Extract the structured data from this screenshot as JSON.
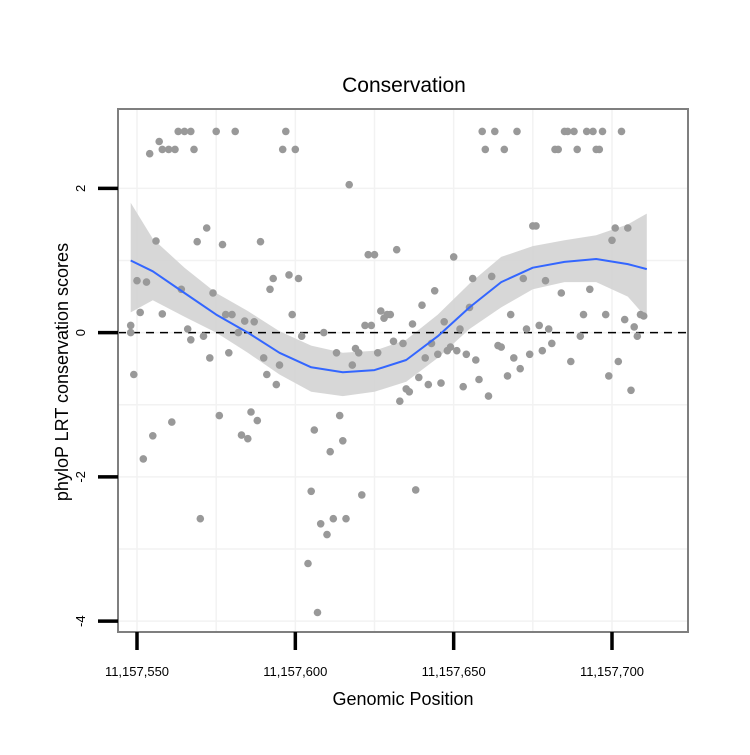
{
  "chart_data": {
    "type": "scatter",
    "title": "Conservation",
    "xlabel": "Genomic Position",
    "ylabel": "phyloP LRT conservation scores",
    "xlim": [
      11157544,
      11157724
    ],
    "ylim": [
      -4.15,
      3.1
    ],
    "x_ticks": [
      {
        "value": 11157550,
        "label": "11,157,550"
      },
      {
        "value": 11157600,
        "label": "11,157,600"
      },
      {
        "value": 11157650,
        "label": "11,157,650"
      },
      {
        "value": 11157700,
        "label": "11,157,700"
      }
    ],
    "y_ticks": [
      {
        "value": -4,
        "label": "-4"
      },
      {
        "value": -2,
        "label": "-2"
      },
      {
        "value": 0,
        "label": "0"
      },
      {
        "value": 2,
        "label": "2"
      }
    ],
    "reference_line": {
      "y": 0,
      "style": "dashed"
    },
    "colors": {
      "points": "#999999",
      "smooth": "#3366ff",
      "ribbon": "#d3d3d3",
      "grid": "#f2f2f2",
      "panel_border": "#7f7f7f"
    },
    "points": [
      {
        "x": 11157548,
        "y": 0.0
      },
      {
        "x": 11157548,
        "y": 0.1
      },
      {
        "x": 11157549,
        "y": -0.58
      },
      {
        "x": 11157550,
        "y": 0.72
      },
      {
        "x": 11157551,
        "y": 0.28
      },
      {
        "x": 11157552,
        "y": -1.75
      },
      {
        "x": 11157553,
        "y": 0.7
      },
      {
        "x": 11157554,
        "y": 2.48
      },
      {
        "x": 11157555,
        "y": -1.43
      },
      {
        "x": 11157556,
        "y": 1.27
      },
      {
        "x": 11157557,
        "y": 2.65
      },
      {
        "x": 11157558,
        "y": 0.26
      },
      {
        "x": 11157558,
        "y": 2.54
      },
      {
        "x": 11157560,
        "y": 2.54
      },
      {
        "x": 11157561,
        "y": -1.24
      },
      {
        "x": 11157562,
        "y": 2.54
      },
      {
        "x": 11157563,
        "y": 2.79
      },
      {
        "x": 11157564,
        "y": 0.6
      },
      {
        "x": 11157565,
        "y": 2.79
      },
      {
        "x": 11157566,
        "y": 0.05
      },
      {
        "x": 11157567,
        "y": 2.79
      },
      {
        "x": 11157567,
        "y": -0.1
      },
      {
        "x": 11157568,
        "y": 2.54
      },
      {
        "x": 11157569,
        "y": 1.26
      },
      {
        "x": 11157570,
        "y": -2.58
      },
      {
        "x": 11157571,
        "y": -0.05
      },
      {
        "x": 11157572,
        "y": 1.45
      },
      {
        "x": 11157573,
        "y": -0.35
      },
      {
        "x": 11157574,
        "y": 0.55
      },
      {
        "x": 11157575,
        "y": 2.79
      },
      {
        "x": 11157576,
        "y": -1.15
      },
      {
        "x": 11157577,
        "y": 1.22
      },
      {
        "x": 11157578,
        "y": 0.25
      },
      {
        "x": 11157579,
        "y": -0.28
      },
      {
        "x": 11157580,
        "y": 0.25
      },
      {
        "x": 11157581,
        "y": 2.79
      },
      {
        "x": 11157582,
        "y": 0.0
      },
      {
        "x": 11157583,
        "y": -1.42
      },
      {
        "x": 11157584,
        "y": 0.16
      },
      {
        "x": 11157585,
        "y": -1.47
      },
      {
        "x": 11157586,
        "y": -1.1
      },
      {
        "x": 11157587,
        "y": 0.15
      },
      {
        "x": 11157588,
        "y": -1.22
      },
      {
        "x": 11157589,
        "y": 1.26
      },
      {
        "x": 11157590,
        "y": -0.35
      },
      {
        "x": 11157591,
        "y": -0.58
      },
      {
        "x": 11157592,
        "y": 0.6
      },
      {
        "x": 11157593,
        "y": 0.75
      },
      {
        "x": 11157594,
        "y": -0.72
      },
      {
        "x": 11157595,
        "y": -0.45
      },
      {
        "x": 11157596,
        "y": 2.54
      },
      {
        "x": 11157597,
        "y": 2.79
      },
      {
        "x": 11157598,
        "y": 0.8
      },
      {
        "x": 11157599,
        "y": 0.25
      },
      {
        "x": 11157600,
        "y": 2.54
      },
      {
        "x": 11157601,
        "y": 0.75
      },
      {
        "x": 11157602,
        "y": -0.05
      },
      {
        "x": 11157604,
        "y": -3.2
      },
      {
        "x": 11157605,
        "y": -2.2
      },
      {
        "x": 11157606,
        "y": -1.35
      },
      {
        "x": 11157607,
        "y": -3.88
      },
      {
        "x": 11157608,
        "y": -2.65
      },
      {
        "x": 11157609,
        "y": 0.0
      },
      {
        "x": 11157610,
        "y": -2.8
      },
      {
        "x": 11157611,
        "y": -1.65
      },
      {
        "x": 11157612,
        "y": -2.58
      },
      {
        "x": 11157613,
        "y": -0.28
      },
      {
        "x": 11157614,
        "y": -1.15
      },
      {
        "x": 11157615,
        "y": -1.5
      },
      {
        "x": 11157616,
        "y": -2.58
      },
      {
        "x": 11157617,
        "y": 2.05
      },
      {
        "x": 11157618,
        "y": -0.45
      },
      {
        "x": 11157619,
        "y": -0.22
      },
      {
        "x": 11157620,
        "y": -0.28
      },
      {
        "x": 11157621,
        "y": -2.25
      },
      {
        "x": 11157622,
        "y": 0.1
      },
      {
        "x": 11157623,
        "y": 1.08
      },
      {
        "x": 11157624,
        "y": 0.1
      },
      {
        "x": 11157625,
        "y": 1.08
      },
      {
        "x": 11157626,
        "y": -0.28
      },
      {
        "x": 11157627,
        "y": 0.3
      },
      {
        "x": 11157628,
        "y": 0.2
      },
      {
        "x": 11157629,
        "y": 0.25
      },
      {
        "x": 11157630,
        "y": 0.25
      },
      {
        "x": 11157631,
        "y": -0.12
      },
      {
        "x": 11157632,
        "y": 1.15
      },
      {
        "x": 11157633,
        "y": -0.95
      },
      {
        "x": 11157634,
        "y": -0.15
      },
      {
        "x": 11157635,
        "y": -0.78
      },
      {
        "x": 11157636,
        "y": -0.82
      },
      {
        "x": 11157637,
        "y": 0.12
      },
      {
        "x": 11157638,
        "y": -2.18
      },
      {
        "x": 11157639,
        "y": -0.62
      },
      {
        "x": 11157640,
        "y": 0.38
      },
      {
        "x": 11157641,
        "y": -0.35
      },
      {
        "x": 11157642,
        "y": -0.72
      },
      {
        "x": 11157643,
        "y": -0.15
      },
      {
        "x": 11157644,
        "y": 0.58
      },
      {
        "x": 11157645,
        "y": -0.3
      },
      {
        "x": 11157646,
        "y": -0.7
      },
      {
        "x": 11157647,
        "y": 0.15
      },
      {
        "x": 11157648,
        "y": -0.25
      },
      {
        "x": 11157649,
        "y": -0.2
      },
      {
        "x": 11157650,
        "y": 1.05
      },
      {
        "x": 11157651,
        "y": -0.25
      },
      {
        "x": 11157652,
        "y": 0.05
      },
      {
        "x": 11157653,
        "y": -0.75
      },
      {
        "x": 11157654,
        "y": -0.3
      },
      {
        "x": 11157655,
        "y": 0.35
      },
      {
        "x": 11157656,
        "y": 0.75
      },
      {
        "x": 11157657,
        "y": -0.38
      },
      {
        "x": 11157658,
        "y": -0.65
      },
      {
        "x": 11157659,
        "y": 2.79
      },
      {
        "x": 11157660,
        "y": 2.54
      },
      {
        "x": 11157661,
        "y": -0.88
      },
      {
        "x": 11157662,
        "y": 0.78
      },
      {
        "x": 11157663,
        "y": 2.79
      },
      {
        "x": 11157664,
        "y": -0.18
      },
      {
        "x": 11157665,
        "y": -0.2
      },
      {
        "x": 11157666,
        "y": 2.54
      },
      {
        "x": 11157667,
        "y": -0.6
      },
      {
        "x": 11157668,
        "y": 0.25
      },
      {
        "x": 11157669,
        "y": -0.35
      },
      {
        "x": 11157670,
        "y": 2.79
      },
      {
        "x": 11157671,
        "y": -0.5
      },
      {
        "x": 11157672,
        "y": 0.75
      },
      {
        "x": 11157673,
        "y": 0.05
      },
      {
        "x": 11157674,
        "y": -0.3
      },
      {
        "x": 11157675,
        "y": 1.48
      },
      {
        "x": 11157676,
        "y": 1.48
      },
      {
        "x": 11157677,
        "y": 0.1
      },
      {
        "x": 11157678,
        "y": -0.25
      },
      {
        "x": 11157679,
        "y": 0.72
      },
      {
        "x": 11157680,
        "y": 0.05
      },
      {
        "x": 11157681,
        "y": -0.15
      },
      {
        "x": 11157682,
        "y": 2.54
      },
      {
        "x": 11157683,
        "y": 2.54
      },
      {
        "x": 11157684,
        "y": 0.55
      },
      {
        "x": 11157685,
        "y": 2.79
      },
      {
        "x": 11157686,
        "y": 2.79
      },
      {
        "x": 11157687,
        "y": -0.4
      },
      {
        "x": 11157688,
        "y": 2.79
      },
      {
        "x": 11157689,
        "y": 2.54
      },
      {
        "x": 11157690,
        "y": -0.05
      },
      {
        "x": 11157691,
        "y": 0.25
      },
      {
        "x": 11157692,
        "y": 2.79
      },
      {
        "x": 11157693,
        "y": 0.6
      },
      {
        "x": 11157694,
        "y": 2.79
      },
      {
        "x": 11157695,
        "y": 2.54
      },
      {
        "x": 11157696,
        "y": 2.54
      },
      {
        "x": 11157697,
        "y": 2.79
      },
      {
        "x": 11157698,
        "y": 0.25
      },
      {
        "x": 11157699,
        "y": -0.6
      },
      {
        "x": 11157700,
        "y": 1.28
      },
      {
        "x": 11157701,
        "y": 1.45
      },
      {
        "x": 11157702,
        "y": -0.4
      },
      {
        "x": 11157703,
        "y": 2.79
      },
      {
        "x": 11157704,
        "y": 0.18
      },
      {
        "x": 11157705,
        "y": 1.45
      },
      {
        "x": 11157706,
        "y": -0.8
      },
      {
        "x": 11157707,
        "y": 0.08
      },
      {
        "x": 11157708,
        "y": -0.05
      },
      {
        "x": 11157709,
        "y": 0.25
      },
      {
        "x": 11157710,
        "y": 0.23
      }
    ],
    "smooth_line": [
      {
        "x": 11157548,
        "y": 1.0,
        "lower": 0.28,
        "upper": 1.8
      },
      {
        "x": 11157555,
        "y": 0.85,
        "lower": 0.45,
        "upper": 1.3
      },
      {
        "x": 11157565,
        "y": 0.55,
        "lower": 0.22,
        "upper": 0.9
      },
      {
        "x": 11157575,
        "y": 0.25,
        "lower": 0.0,
        "upper": 0.55
      },
      {
        "x": 11157585,
        "y": 0.0,
        "lower": -0.28,
        "upper": 0.3
      },
      {
        "x": 11157595,
        "y": -0.28,
        "lower": -0.58,
        "upper": 0.02
      },
      {
        "x": 11157605,
        "y": -0.48,
        "lower": -0.82,
        "upper": -0.18
      },
      {
        "x": 11157615,
        "y": -0.55,
        "lower": -0.88,
        "upper": -0.28
      },
      {
        "x": 11157625,
        "y": -0.52,
        "lower": -0.82,
        "upper": -0.25
      },
      {
        "x": 11157635,
        "y": -0.38,
        "lower": -0.68,
        "upper": -0.1
      },
      {
        "x": 11157645,
        "y": -0.05,
        "lower": -0.35,
        "upper": 0.25
      },
      {
        "x": 11157655,
        "y": 0.35,
        "lower": 0.05,
        "upper": 0.68
      },
      {
        "x": 11157665,
        "y": 0.7,
        "lower": 0.35,
        "upper": 1.05
      },
      {
        "x": 11157675,
        "y": 0.9,
        "lower": 0.6,
        "upper": 1.2
      },
      {
        "x": 11157685,
        "y": 0.98,
        "lower": 0.7,
        "upper": 1.28
      },
      {
        "x": 11157695,
        "y": 1.02,
        "lower": 0.7,
        "upper": 1.35
      },
      {
        "x": 11157705,
        "y": 0.95,
        "lower": 0.5,
        "upper": 1.5
      },
      {
        "x": 11157711,
        "y": 0.88,
        "lower": 0.2,
        "upper": 1.65
      }
    ]
  }
}
